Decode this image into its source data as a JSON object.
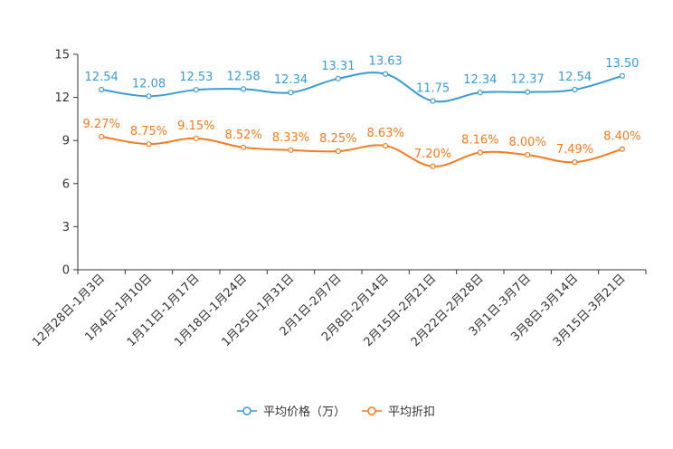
{
  "chart_data": {
    "type": "line",
    "categories": [
      "12月28日-1月3日",
      "1月4日-1月10日",
      "1月11日-1月17日",
      "1月18日-1月24日",
      "1月25日-1月31日",
      "2月1日-2月7日",
      "2月8日-2月14日",
      "2月15日-2月21日",
      "2月22日-2月28日",
      "3月1日-3月7日",
      "3月8日-3月14日",
      "3月15日-3月21日"
    ],
    "ylim": [
      0,
      15
    ],
    "yticks": [
      0,
      3,
      6,
      9,
      12,
      15
    ],
    "ytick_labels": [
      "0",
      "3",
      "6",
      "9",
      "12",
      "15"
    ],
    "legend_position": "bottom",
    "series": [
      {
        "name": "平均价格（万）",
        "color": "#3a9bd1",
        "values": [
          12.54,
          12.08,
          12.53,
          12.58,
          12.34,
          13.31,
          13.63,
          11.75,
          12.34,
          12.37,
          12.54,
          13.5
        ],
        "labels": [
          "12.54",
          "12.08",
          "12.53",
          "12.58",
          "12.34",
          "13.31",
          "13.63",
          "11.75",
          "12.34",
          "12.37",
          "12.54",
          "13.50"
        ]
      },
      {
        "name": "平均折扣",
        "color": "#f47b20",
        "values": [
          9.27,
          8.75,
          9.15,
          8.52,
          8.33,
          8.25,
          8.63,
          7.2,
          8.16,
          8.0,
          7.49,
          8.4
        ],
        "labels": [
          "9.27%",
          "8.75%",
          "9.15%",
          "8.52%",
          "8.33%",
          "8.25%",
          "8.63%",
          "7.20%",
          "8.16%",
          "8.00%",
          "7.49%",
          "8.40%"
        ]
      }
    ]
  }
}
